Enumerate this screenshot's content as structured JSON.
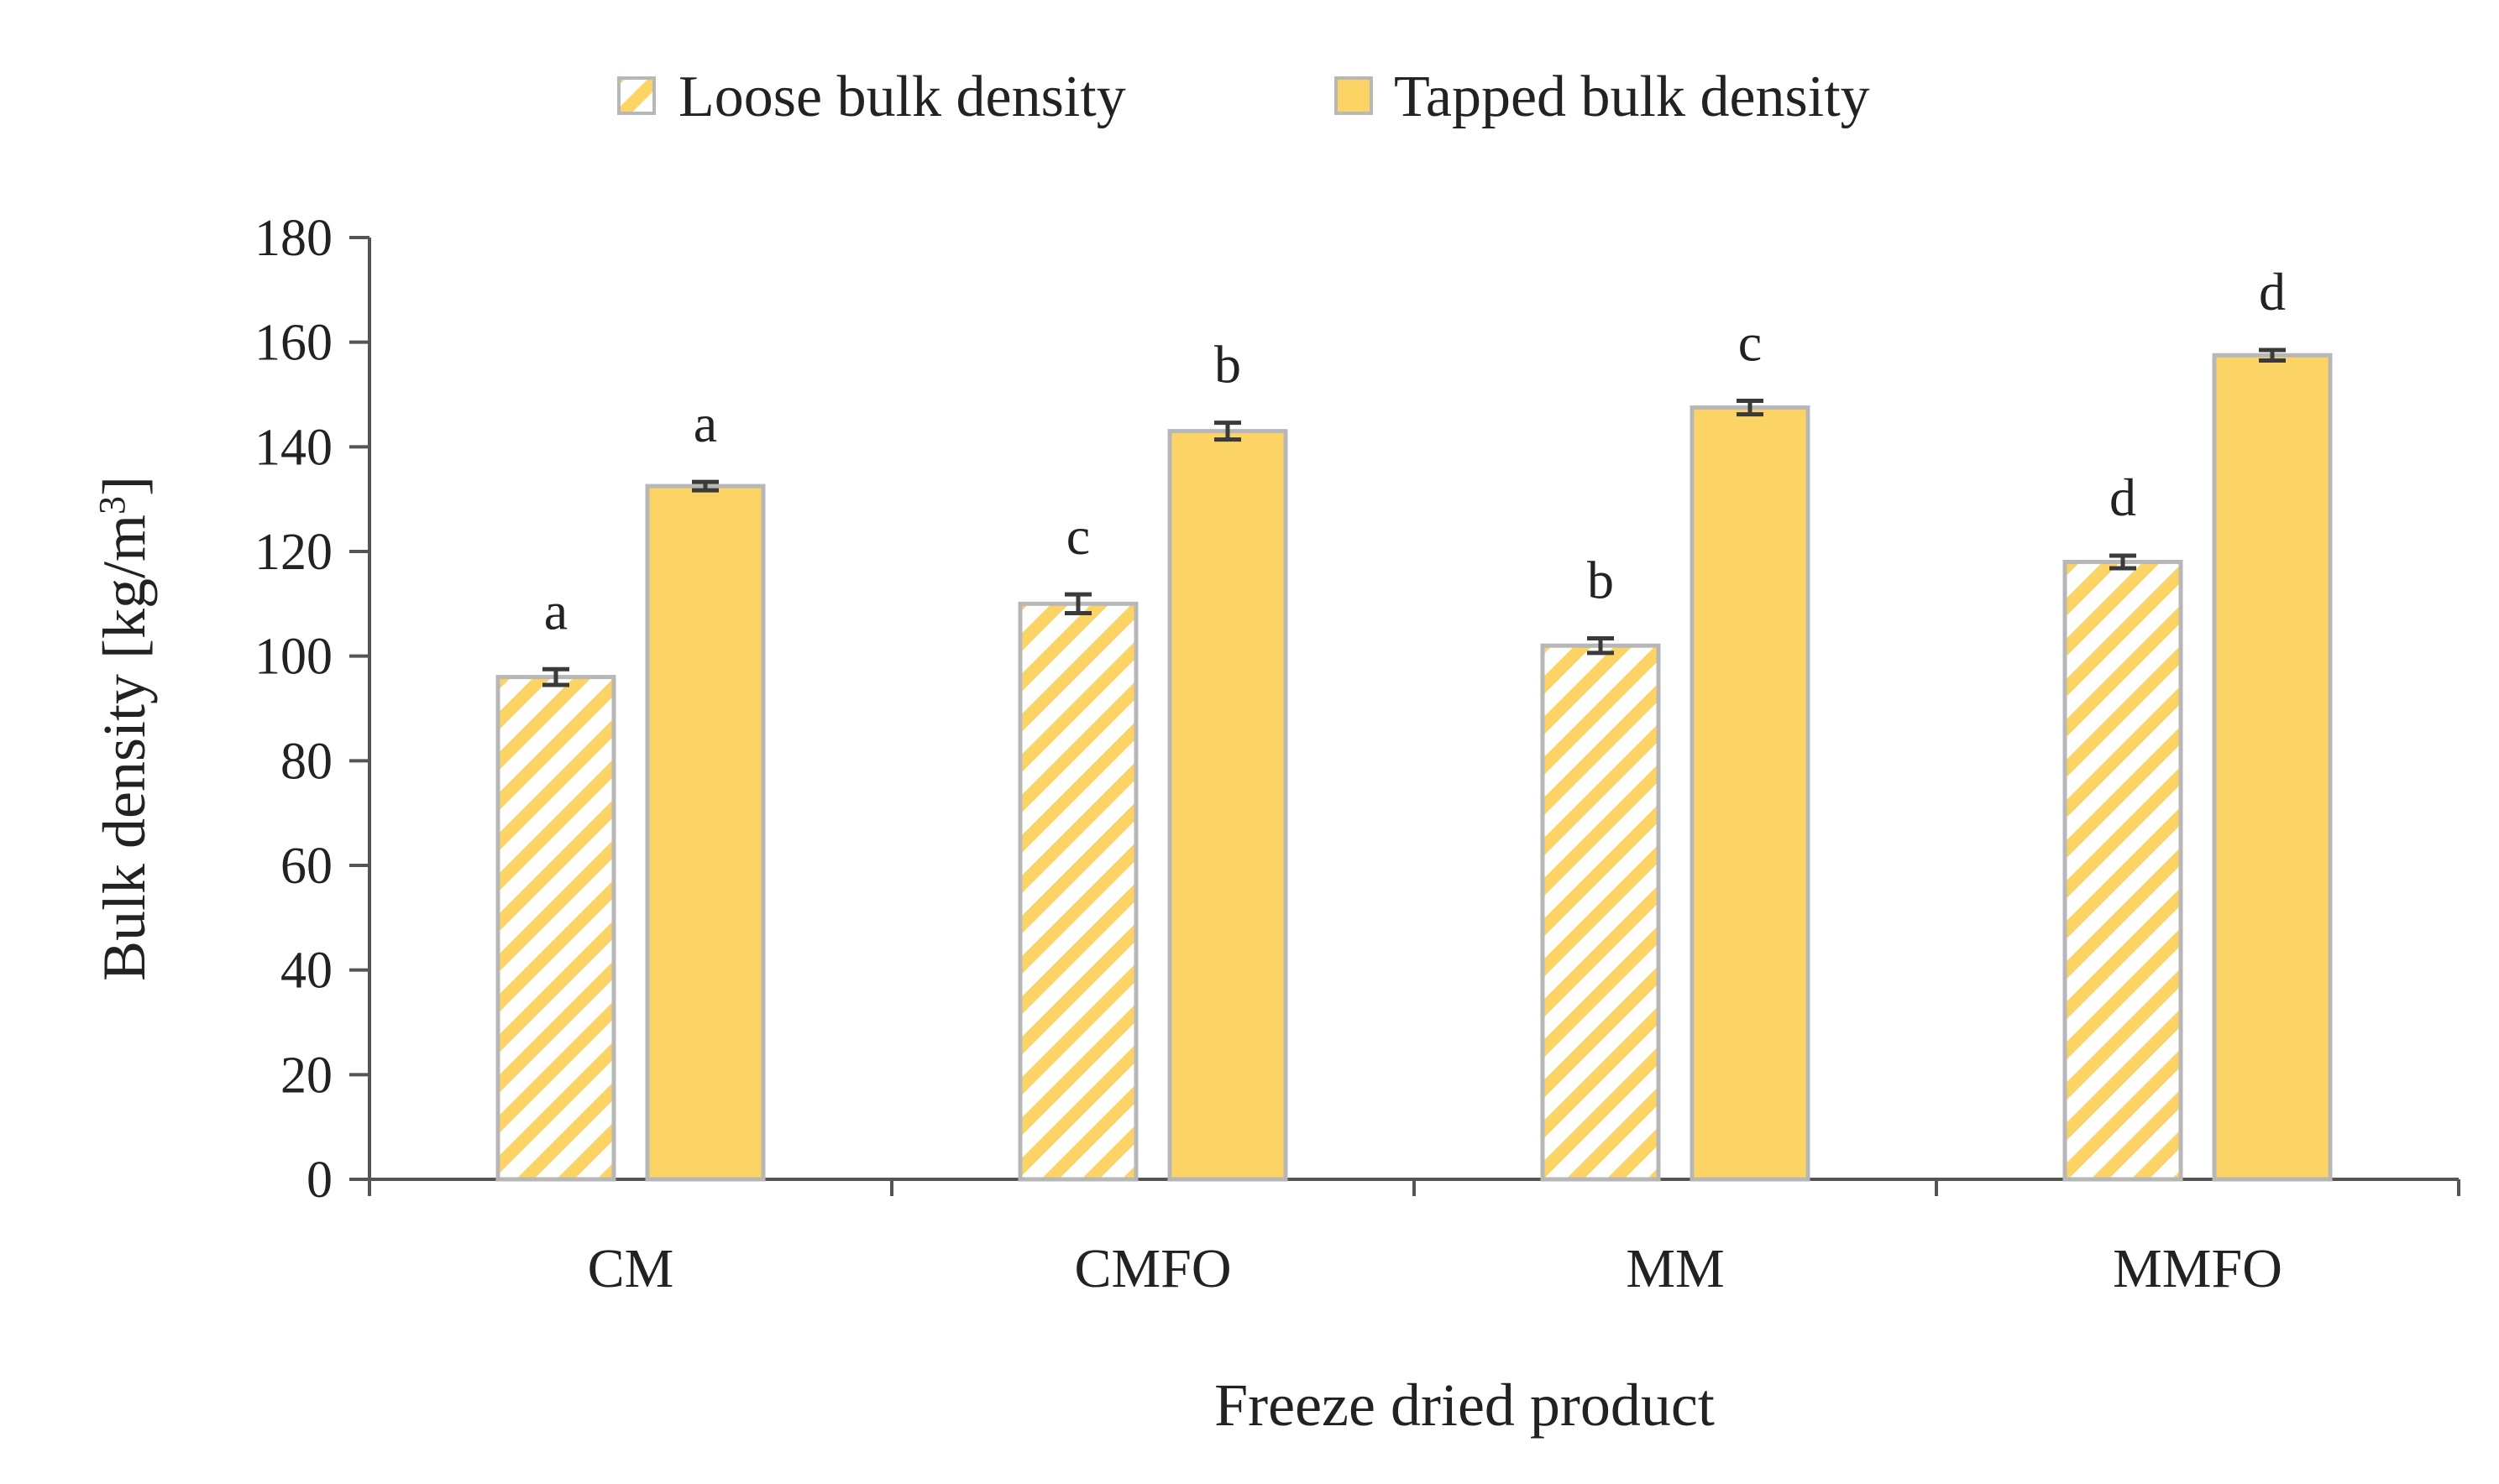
{
  "chart_data": {
    "type": "bar",
    "xlabel": "Freeze dried product",
    "ylabel": "Bulk density [kg/m",
    "ylabel_superscript": "3",
    "ylabel_suffix": "]",
    "ylim": [
      0,
      180
    ],
    "yticks": [
      0,
      20,
      40,
      60,
      80,
      100,
      120,
      140,
      160,
      180
    ],
    "grid": false,
    "legend_position": "top",
    "categories": [
      "CM",
      "CMFO",
      "MM",
      "MMFO"
    ],
    "series": [
      {
        "name": "Loose bulk density",
        "values": [
          96,
          110,
          102,
          118
        ],
        "errors": [
          1.5,
          1.8,
          1.4,
          1.2
        ],
        "labels": [
          "a",
          "c",
          "b",
          "d"
        ],
        "fill": "#ffffff",
        "stripe_color": "#FCD466",
        "pattern": "diagonal-stripes"
      },
      {
        "name": "Tapped bulk density",
        "values": [
          132.5,
          143,
          147.5,
          157.5
        ],
        "errors": [
          0.8,
          1.6,
          1.3,
          1.0
        ],
        "labels": [
          "a",
          "b",
          "c",
          "d"
        ],
        "fill": "#FCD466",
        "pattern": "solid"
      }
    ],
    "colors": {
      "bar_outline": "#B7B7B7",
      "axis": "#555555",
      "error_bar": "#3a3a3a",
      "text": "#222222"
    }
  }
}
